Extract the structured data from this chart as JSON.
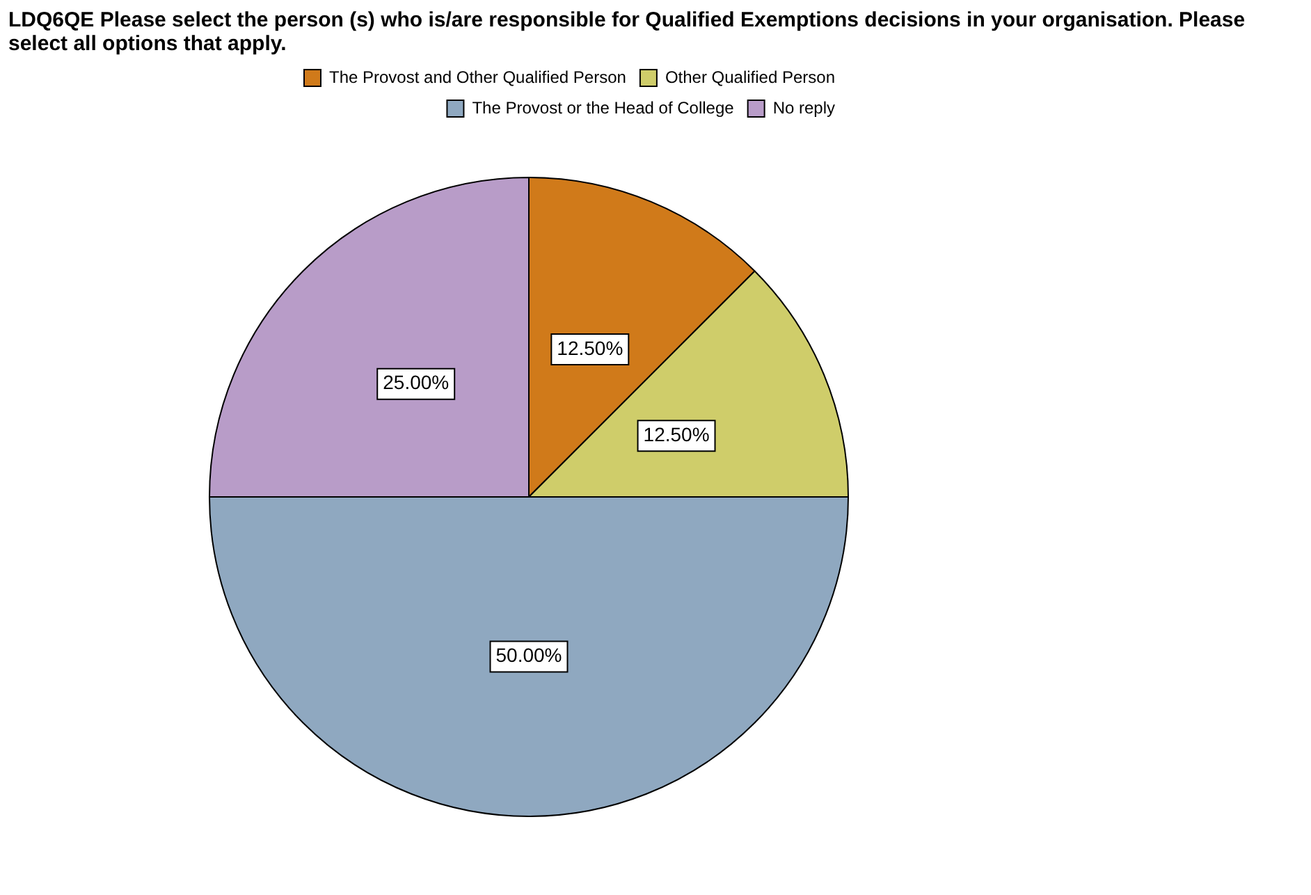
{
  "chart_data": {
    "type": "pie",
    "title": "LDQ6QE Please select the person (s) who is/are responsible for Qualified Exemptions decisions in your organisation. Please select all options that apply.",
    "categories": [
      "The Provost and Other Qualified Person",
      "Other Qualified Person",
      "The Provost or the Head of College",
      "No reply"
    ],
    "values": [
      12.5,
      12.5,
      50,
      25
    ],
    "value_labels": [
      "12.50%",
      "12.50%",
      "50.00%",
      "25.00%"
    ],
    "colors": [
      "#d07a1a",
      "#cfcd6a",
      "#8fa8c0",
      "#b89cc8"
    ],
    "legend": "top"
  }
}
